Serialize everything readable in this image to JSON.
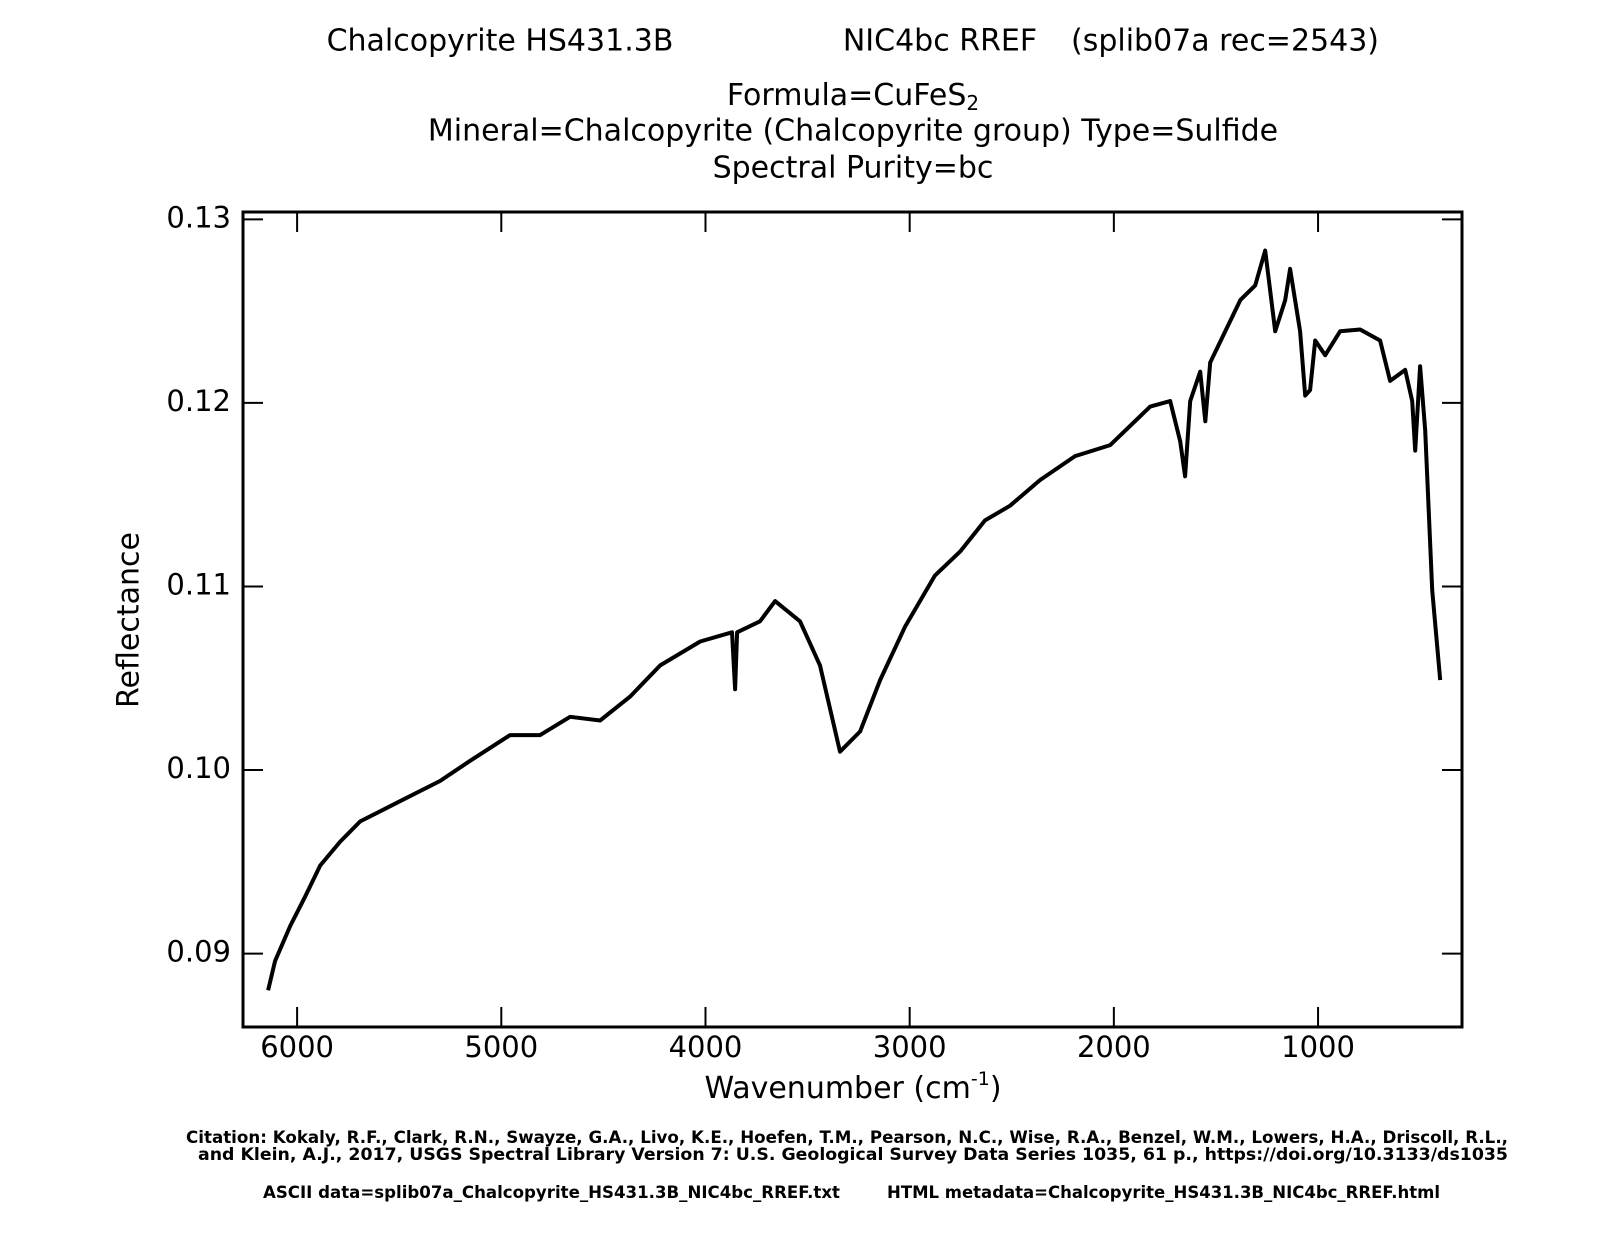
{
  "chart_data": {
    "type": "line",
    "header": [
      "Chalcopyrite HS431.3B",
      "NIC4bc RREF",
      "(splib07a rec=2543)"
    ],
    "formula": {
      "text": "Formula=CuFeS",
      "sub": "2"
    },
    "subtitle": [
      "Mineral=Chalcopyrite (Chalcopyrite group)  Type=Sulfide",
      "Spectral Purity=bc"
    ],
    "x_label": {
      "text": "Wavenumber (cm",
      "sup": "-1",
      "end": ")"
    },
    "y_label": "Reflectance",
    "color": "#000000",
    "xlim": [
      6265,
      295
    ],
    "ylim": [
      0.086,
      0.1304
    ],
    "xticks": [
      6000,
      5000,
      4000,
      3000,
      2000,
      1000
    ],
    "yticks": [
      {
        "value": 0.09,
        "label": "0.09"
      },
      {
        "value": 0.1,
        "label": "0.10"
      },
      {
        "value": 0.11,
        "label": "0.11"
      },
      {
        "value": 0.12,
        "label": "0.12"
      },
      {
        "value": 0.13,
        "label": "0.13"
      }
    ],
    "x": [
      6142,
      6108,
      6034,
      5961,
      5887,
      5789,
      5691,
      5496,
      5300,
      5153,
      4957,
      4810,
      4663,
      4516,
      4369,
      4222,
      4026,
      3870,
      3855,
      3845,
      3733,
      3659,
      3537,
      3439,
      3341,
      3243,
      3145,
      3023,
      2876,
      2753,
      2631,
      2508,
      2361,
      2190,
      2018,
      1822,
      1724,
      1675,
      1651,
      1626,
      1577,
      1552,
      1528,
      1381,
      1308,
      1259,
      1210,
      1161,
      1137,
      1088,
      1063,
      1039,
      1014,
      965,
      892,
      794,
      696,
      647,
      573,
      539,
      524,
      500,
      475,
      441,
      402
    ],
    "values": [
      0.088,
      0.0896,
      0.0915,
      0.0931,
      0.0948,
      0.0961,
      0.0972,
      0.0983,
      0.0994,
      0.1005,
      0.1019,
      0.1019,
      0.1029,
      0.1027,
      0.104,
      0.1057,
      0.107,
      0.1075,
      0.1044,
      0.1075,
      0.1081,
      0.1092,
      0.1081,
      0.1057,
      0.101,
      0.1021,
      0.1049,
      0.1078,
      0.1106,
      0.1119,
      0.1136,
      0.1144,
      0.1158,
      0.1171,
      0.1177,
      0.1198,
      0.1201,
      0.1179,
      0.116,
      0.1201,
      0.1217,
      0.119,
      0.1222,
      0.1256,
      0.1264,
      0.1283,
      0.1239,
      0.1256,
      0.1273,
      0.1239,
      0.1204,
      0.1207,
      0.1234,
      0.1226,
      0.1239,
      0.124,
      0.1234,
      0.1212,
      0.1218,
      0.1201,
      0.1174,
      0.122,
      0.1185,
      0.1098,
      0.1049
    ],
    "citation": [
      "Citation: Kokaly, R.F., Clark, R.N., Swayze, G.A., Livo, K.E., Hoefen, T.M., Pearson, N.C., Wise, R.A., Benzel, W.M., Lowers, H.A., Driscoll, R.L.,",
      "and Klein, A.J., 2017, USGS Spectral Library Version 7: U.S. Geological Survey Data Series 1035, 61 p., https://doi.org/10.3133/ds1035"
    ],
    "files": [
      "ASCII data=splib07a_Chalcopyrite_HS431.3B_NIC4bc_RREF.txt",
      "HTML metadata=Chalcopyrite_HS431.3B_NIC4bc_RREF.html"
    ]
  }
}
